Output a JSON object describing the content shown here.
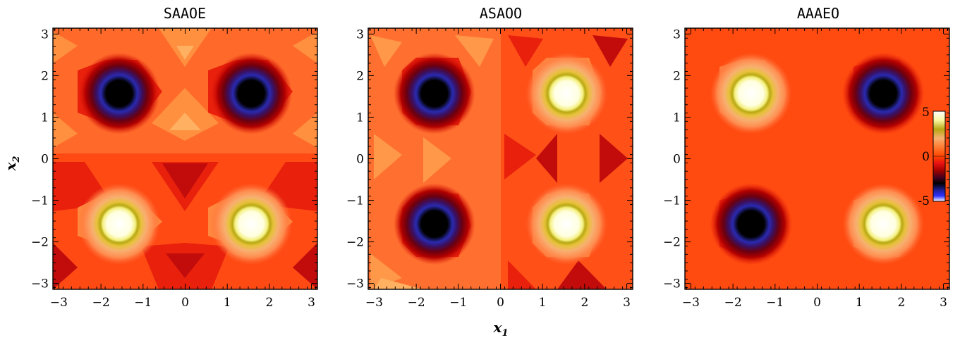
{
  "chart_data": [
    {
      "type": "heatmap",
      "title": "SAAOE",
      "xlim": [
        -3.1416,
        3.1416
      ],
      "ylim": [
        -3.1416,
        3.1416
      ],
      "xticks": [
        "−3",
        "−2",
        "−1",
        "0",
        "1",
        "2",
        "3"
      ],
      "yticks": [
        "3",
        "2",
        "1",
        "0",
        "−1",
        "−2",
        "−3"
      ],
      "ylabel": "x",
      "ylabel_sub": "2",
      "extrema": [
        {
          "x": -1.57,
          "y": 1.57,
          "kind": "min"
        },
        {
          "x": 1.57,
          "y": 1.57,
          "kind": "min"
        },
        {
          "x": -1.57,
          "y": -1.57,
          "kind": "max"
        },
        {
          "x": 1.57,
          "y": -1.57,
          "kind": "max"
        }
      ]
    },
    {
      "type": "heatmap",
      "title": "ASAOO",
      "xlim": [
        -3.1416,
        3.1416
      ],
      "ylim": [
        -3.1416,
        3.1416
      ],
      "xticks": [
        "−3",
        "−2",
        "−1",
        "0",
        "1",
        "2",
        "3"
      ],
      "yticks": [
        "3",
        "2",
        "1",
        "0",
        "−1",
        "−2",
        "−3"
      ],
      "xlabel": "x",
      "xlabel_sub": "1",
      "extrema": [
        {
          "x": -1.57,
          "y": 1.57,
          "kind": "min"
        },
        {
          "x": 1.57,
          "y": 1.57,
          "kind": "max"
        },
        {
          "x": -1.57,
          "y": -1.57,
          "kind": "min"
        },
        {
          "x": 1.57,
          "y": -1.57,
          "kind": "max"
        }
      ]
    },
    {
      "type": "heatmap",
      "title": "AAAEO",
      "xlim": [
        -3.1416,
        3.1416
      ],
      "ylim": [
        -3.1416,
        3.1416
      ],
      "xticks": [
        "−3",
        "−2",
        "−1",
        "0",
        "1",
        "2",
        "3"
      ],
      "yticks": [
        "3",
        "2",
        "1",
        "0",
        "−1",
        "−2",
        "−3"
      ],
      "extrema": [
        {
          "x": -1.57,
          "y": 1.57,
          "kind": "max"
        },
        {
          "x": 1.57,
          "y": 1.57,
          "kind": "min"
        },
        {
          "x": -1.57,
          "y": -1.57,
          "kind": "min"
        },
        {
          "x": 1.57,
          "y": -1.57,
          "kind": "max"
        }
      ]
    }
  ],
  "colorbar": {
    "range": [
      -5,
      5
    ],
    "tick_labels": [
      "5",
      "0",
      "-5"
    ],
    "colors": [
      "#ffffff",
      "#f7f060",
      "#b8a810",
      "#f7b070",
      "#ff7a30",
      "#ff4500",
      "#e81010",
      "#a00000",
      "#400020",
      "#000000",
      "#2020a0",
      "#3030ff",
      "#ffffff"
    ]
  }
}
